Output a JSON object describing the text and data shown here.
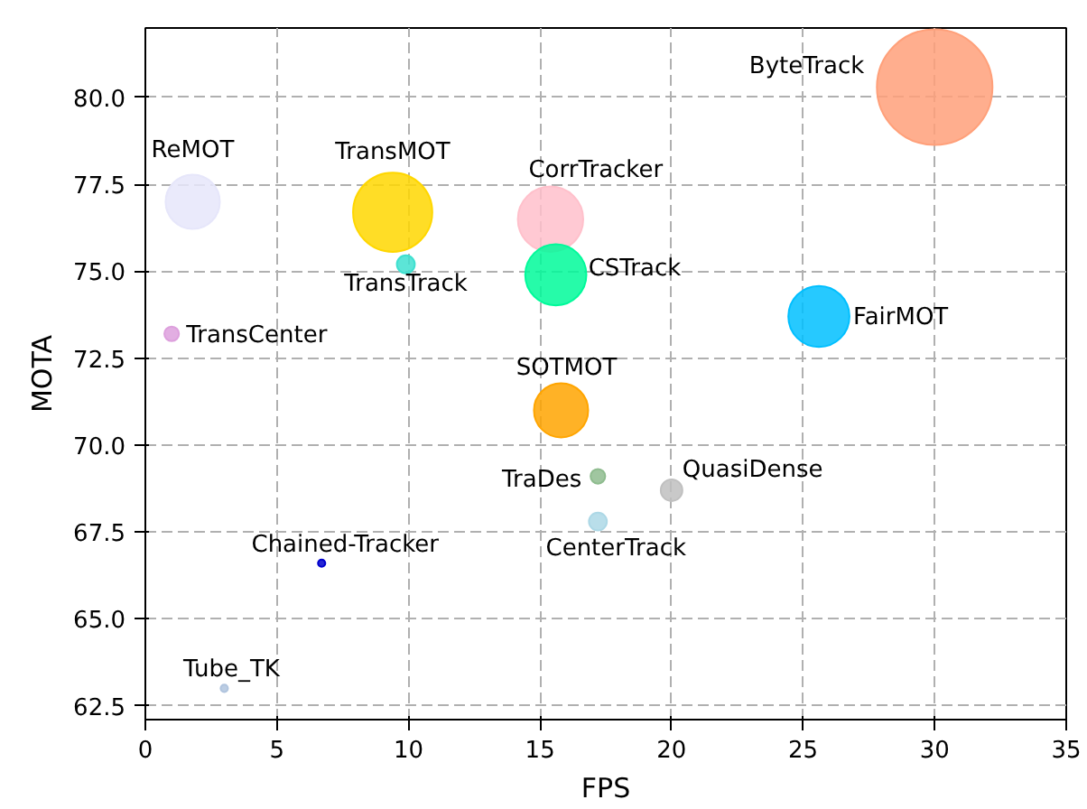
{
  "chart_data": {
    "type": "bubble",
    "xlabel": "FPS",
    "ylabel": "MOTA",
    "xlim": [
      0,
      35
    ],
    "ylim": [
      62.1,
      82.0
    ],
    "xticks": [
      0,
      5,
      10,
      15,
      20,
      25,
      30,
      35
    ],
    "yticks": [
      62.5,
      {
        "value": 65,
        "label": "65.0"
      },
      67.5,
      {
        "value": 70,
        "label": "70.0"
      },
      72.5,
      {
        "value": 75,
        "label": "75.0"
      },
      77.5,
      {
        "value": 80,
        "label": "80.0"
      }
    ],
    "grid": true,
    "series": [
      {
        "name": "ByteTrack",
        "color": "#ffa07a",
        "x": [
          30.0
        ],
        "values": [
          80.3
        ],
        "sizes": [
          1
        ]
      },
      {
        "name": "ReMOT",
        "color": "#e6e6fa",
        "x": [
          1.8
        ],
        "values": [
          77.0
        ],
        "sizes": [
          0.22
        ]
      },
      {
        "name": "TransMOT",
        "color": "#ffd700",
        "x": [
          9.4
        ],
        "values": [
          76.7
        ],
        "sizes": [
          0.47
        ]
      },
      {
        "name": "TransTrack",
        "color": "#40e0d0",
        "x": [
          9.9
        ],
        "values": [
          75.2
        ],
        "sizes": [
          0.024
        ]
      },
      {
        "name": "CorrTracker",
        "color": "#ffc0cb",
        "x": [
          15.4
        ],
        "values": [
          76.5
        ],
        "sizes": [
          0.32
        ]
      },
      {
        "name": "CSTrack",
        "color": "#00fa9a",
        "x": [
          15.6
        ],
        "values": [
          74.9
        ],
        "sizes": [
          0.28
        ]
      },
      {
        "name": "FairMOT",
        "color": "#00bfff",
        "x": [
          25.6
        ],
        "values": [
          73.7
        ],
        "sizes": [
          0.28
        ]
      },
      {
        "name": "TransCenter",
        "color": "#dda0dd",
        "x": [
          1.0
        ],
        "values": [
          73.2
        ],
        "sizes": [
          0.016
        ]
      },
      {
        "name": "SOTMOT",
        "color": "#ffa500",
        "x": [
          15.8
        ],
        "values": [
          71.0
        ],
        "sizes": [
          0.22
        ]
      },
      {
        "name": "TraDes",
        "color": "#8fbc8f",
        "x": [
          17.2
        ],
        "values": [
          69.1
        ],
        "sizes": [
          0.016
        ]
      },
      {
        "name": "QuasiDense",
        "color": "#c0c0c0",
        "x": [
          20.0
        ],
        "values": [
          68.7
        ],
        "sizes": [
          0.035
        ]
      },
      {
        "name": "CenterTrack",
        "color": "#add8e6",
        "x": [
          17.2
        ],
        "values": [
          67.8
        ],
        "sizes": [
          0.024
        ]
      },
      {
        "name": "Chained-Tracker",
        "color": "#0000cd",
        "x": [
          6.7
        ],
        "values": [
          66.6
        ],
        "sizes": [
          0.004
        ]
      },
      {
        "name": "Tube_TK",
        "color": "#b0c4de",
        "x": [
          3.0
        ],
        "values": [
          63.0
        ],
        "sizes": [
          0.004
        ]
      }
    ]
  }
}
